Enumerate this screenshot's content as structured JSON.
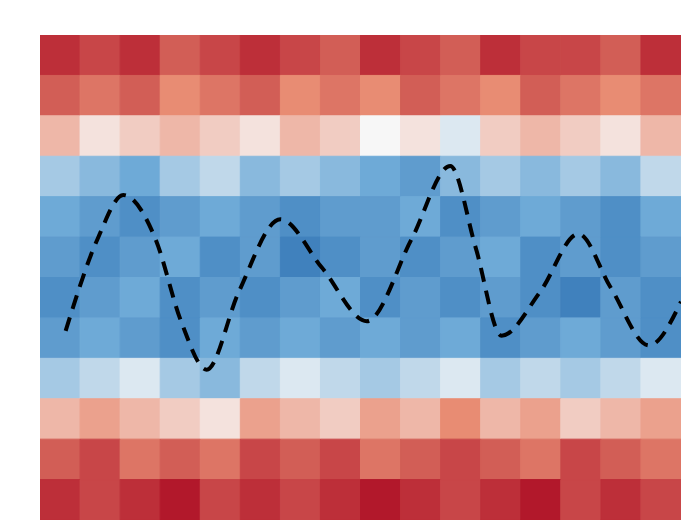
{
  "chart_data": {
    "type": "heatmap",
    "xlim": [
      0,
      1
    ],
    "ylim": [
      0,
      1
    ],
    "tick_labels": false,
    "cells": [
      [
        0.9,
        0.8,
        0.9,
        0.7,
        0.8,
        0.9,
        0.8,
        0.7,
        0.9,
        0.8,
        0.7,
        0.9,
        0.8,
        0.8,
        0.7,
        0.9
      ],
      [
        0.7,
        0.6,
        0.7,
        0.5,
        0.6,
        0.7,
        0.5,
        0.6,
        0.5,
        0.7,
        0.6,
        0.5,
        0.7,
        0.6,
        0.5,
        0.6
      ],
      [
        0.3,
        0.1,
        0.2,
        0.3,
        0.2,
        0.1,
        0.3,
        0.2,
        0.0,
        0.1,
        -0.1,
        0.2,
        0.3,
        0.2,
        0.1,
        0.3
      ],
      [
        -0.3,
        -0.4,
        -0.5,
        -0.3,
        -0.2,
        -0.4,
        -0.3,
        -0.4,
        -0.5,
        -0.6,
        -0.4,
        -0.3,
        -0.4,
        -0.3,
        -0.4,
        -0.2
      ],
      [
        -0.5,
        -0.6,
        -0.7,
        -0.6,
        -0.5,
        -0.6,
        -0.7,
        -0.6,
        -0.6,
        -0.5,
        -0.7,
        -0.6,
        -0.5,
        -0.6,
        -0.7,
        -0.5
      ],
      [
        -0.6,
        -0.7,
        -0.6,
        -0.5,
        -0.7,
        -0.6,
        -0.8,
        -0.7,
        -0.6,
        -0.7,
        -0.6,
        -0.5,
        -0.7,
        -0.6,
        -0.7,
        -0.6
      ],
      [
        -0.7,
        -0.6,
        -0.5,
        -0.7,
        -0.6,
        -0.7,
        -0.6,
        -0.5,
        -0.7,
        -0.6,
        -0.7,
        -0.6,
        -0.7,
        -0.8,
        -0.6,
        -0.7
      ],
      [
        -0.6,
        -0.5,
        -0.6,
        -0.7,
        -0.5,
        -0.6,
        -0.5,
        -0.6,
        -0.5,
        -0.6,
        -0.5,
        -0.7,
        -0.6,
        -0.5,
        -0.6,
        -0.7
      ],
      [
        -0.3,
        -0.2,
        -0.1,
        -0.3,
        -0.4,
        -0.2,
        -0.1,
        -0.2,
        -0.3,
        -0.2,
        -0.1,
        -0.3,
        -0.2,
        -0.3,
        -0.2,
        -0.1
      ],
      [
        0.3,
        0.4,
        0.3,
        0.2,
        0.1,
        0.4,
        0.3,
        0.2,
        0.4,
        0.3,
        0.5,
        0.3,
        0.4,
        0.2,
        0.3,
        0.4
      ],
      [
        0.7,
        0.8,
        0.6,
        0.7,
        0.6,
        0.8,
        0.7,
        0.8,
        0.6,
        0.7,
        0.8,
        0.7,
        0.6,
        0.8,
        0.7,
        0.6
      ],
      [
        0.9,
        0.8,
        0.9,
        1.0,
        0.8,
        0.9,
        0.8,
        0.9,
        1.0,
        0.9,
        0.8,
        0.9,
        1.0,
        0.8,
        0.9,
        0.8
      ]
    ],
    "series": [
      {
        "type": "line",
        "color": "#000000",
        "line_style": "dashed",
        "x": [
          0.04,
          0.09,
          0.13,
          0.18,
          0.22,
          0.26,
          0.31,
          0.375,
          0.44,
          0.51,
          0.58,
          0.64,
          0.68,
          0.72,
          0.78,
          0.84,
          0.89,
          0.95,
          1.0
        ],
        "values": [
          0.39,
          0.58,
          0.67,
          0.58,
          0.41,
          0.31,
          0.47,
          0.62,
          0.52,
          0.41,
          0.58,
          0.73,
          0.56,
          0.38,
          0.47,
          0.59,
          0.48,
          0.36,
          0.45
        ]
      }
    ]
  }
}
